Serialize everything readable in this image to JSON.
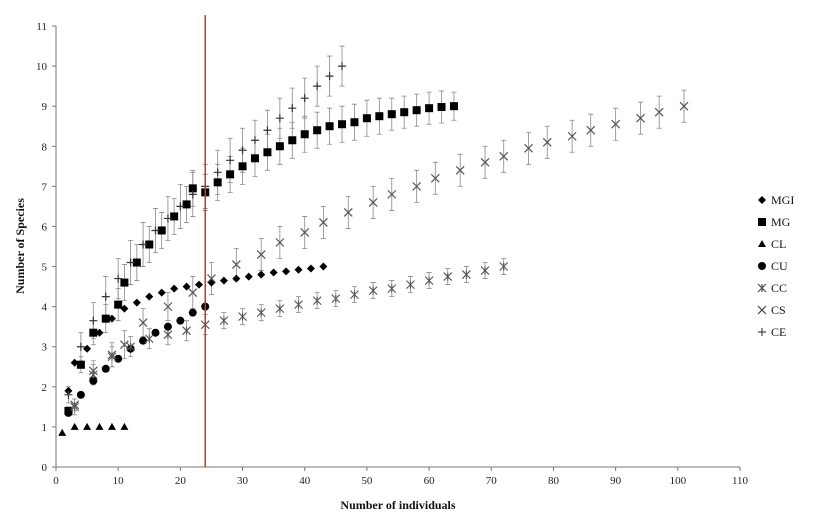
{
  "chart_data": {
    "type": "scatter",
    "xlabel": "Number of individuals",
    "ylabel": "Number of Species",
    "xlim": [
      0,
      110
    ],
    "ylim": [
      0,
      11
    ],
    "xticks": [
      "0",
      "10",
      "20",
      "30",
      "40",
      "50",
      "60",
      "70",
      "80",
      "90",
      "100",
      "110"
    ],
    "yticks": [
      "0",
      "1",
      "2",
      "3",
      "4",
      "5",
      "6",
      "7",
      "8",
      "9",
      "10",
      "11"
    ],
    "grid": false,
    "legend_position": "right",
    "reference_line": {
      "x": 24,
      "color": "#c0392b"
    },
    "series": [
      {
        "name": "MGI",
        "marker": "diamond",
        "color": "#000000",
        "x": [
          2,
          3,
          5,
          7,
          9,
          11,
          13,
          15,
          17,
          19,
          21,
          23,
          25,
          27,
          29,
          31,
          33,
          35,
          37,
          39,
          41,
          43
        ],
        "y": [
          1.9,
          2.6,
          2.95,
          3.35,
          3.7,
          3.95,
          4.1,
          4.25,
          4.35,
          4.45,
          4.5,
          4.55,
          4.6,
          4.65,
          4.7,
          4.75,
          4.8,
          4.85,
          4.88,
          4.92,
          4.95,
          5.0
        ],
        "err": []
      },
      {
        "name": "MG",
        "marker": "square",
        "color": "#000000",
        "x": [
          2,
          4,
          6,
          8,
          10,
          11,
          13,
          15,
          17,
          19,
          21,
          22,
          24,
          26,
          28,
          30,
          32,
          34,
          36,
          38,
          40,
          42,
          44,
          46,
          48,
          50,
          52,
          54,
          56,
          58,
          60,
          62,
          64
        ],
        "y": [
          1.4,
          2.55,
          3.35,
          3.7,
          4.05,
          4.6,
          5.1,
          5.55,
          5.9,
          6.25,
          6.55,
          6.95,
          6.85,
          7.1,
          7.3,
          7.5,
          7.7,
          7.85,
          8.0,
          8.15,
          8.3,
          8.4,
          8.5,
          8.55,
          8.6,
          8.7,
          8.75,
          8.8,
          8.85,
          8.9,
          8.95,
          8.98,
          9.0
        ],
        "err": [
          0.1,
          0.2,
          0.3,
          0.35,
          0.4,
          0.45,
          0.45,
          0.45,
          0.45,
          0.45,
          0.45,
          0.45,
          0.45,
          0.45,
          0.45,
          0.45,
          0.45,
          0.45,
          0.45,
          0.45,
          0.45,
          0.45,
          0.45,
          0.45,
          0.45,
          0.45,
          0.45,
          0.4,
          0.4,
          0.4,
          0.4,
          0.4,
          0.35
        ]
      },
      {
        "name": "CL",
        "marker": "triangle",
        "color": "#000000",
        "x": [
          1,
          3,
          5,
          7,
          9,
          11
        ],
        "y": [
          0.85,
          1.0,
          1.0,
          1.0,
          1.0,
          1.0
        ],
        "err": []
      },
      {
        "name": "CU",
        "marker": "circle",
        "color": "#000000",
        "x": [
          2,
          4,
          6,
          8,
          10,
          12,
          14,
          16,
          18,
          20,
          22,
          24
        ],
        "y": [
          1.35,
          1.8,
          2.15,
          2.45,
          2.7,
          2.95,
          3.15,
          3.35,
          3.5,
          3.65,
          3.85,
          4.0
        ],
        "err": []
      },
      {
        "name": "CC",
        "marker": "asterisk",
        "color": "#555555",
        "x": [
          3,
          6,
          9,
          12,
          15,
          18,
          21,
          24,
          27,
          30,
          33,
          36,
          39,
          42,
          45,
          48,
          51,
          54,
          57,
          60,
          63,
          66,
          69,
          72
        ],
        "y": [
          1.5,
          2.3,
          2.75,
          3.0,
          3.2,
          3.3,
          3.4,
          3.55,
          3.65,
          3.75,
          3.85,
          3.95,
          4.05,
          4.15,
          4.2,
          4.3,
          4.4,
          4.45,
          4.55,
          4.65,
          4.75,
          4.8,
          4.9,
          5.0
        ],
        "err": [
          0.2,
          0.25,
          0.25,
          0.25,
          0.25,
          0.25,
          0.25,
          0.25,
          0.2,
          0.2,
          0.2,
          0.2,
          0.2,
          0.2,
          0.2,
          0.2,
          0.2,
          0.2,
          0.2,
          0.2,
          0.2,
          0.2,
          0.2,
          0.2
        ]
      },
      {
        "name": "CS",
        "marker": "cross",
        "color": "#555555",
        "x": [
          3,
          6,
          9,
          11,
          14,
          18,
          22,
          25,
          29,
          33,
          36,
          40,
          43,
          47,
          51,
          54,
          58,
          61,
          65,
          69,
          72,
          76,
          79,
          83,
          86,
          90,
          94,
          97,
          101
        ],
        "y": [
          1.55,
          2.4,
          2.8,
          3.05,
          3.6,
          4.0,
          4.35,
          4.7,
          5.05,
          5.3,
          5.6,
          5.85,
          6.1,
          6.35,
          6.6,
          6.8,
          7.0,
          7.2,
          7.4,
          7.6,
          7.75,
          7.95,
          8.1,
          8.25,
          8.4,
          8.55,
          8.7,
          8.85,
          9.0
        ],
        "err": [
          0.15,
          0.25,
          0.3,
          0.35,
          0.35,
          0.35,
          0.4,
          0.4,
          0.4,
          0.4,
          0.4,
          0.4,
          0.4,
          0.4,
          0.4,
          0.4,
          0.4,
          0.4,
          0.4,
          0.4,
          0.4,
          0.4,
          0.4,
          0.4,
          0.4,
          0.4,
          0.4,
          0.4,
          0.4
        ]
      },
      {
        "name": "CE",
        "marker": "plus",
        "color": "#333333",
        "x": [
          2,
          4,
          6,
          8,
          10,
          12,
          14,
          16,
          18,
          20,
          22,
          24,
          26,
          28,
          30,
          32,
          34,
          36,
          38,
          40,
          42,
          44,
          46
        ],
        "y": [
          1.8,
          3.0,
          3.65,
          4.25,
          4.7,
          5.1,
          5.55,
          5.9,
          6.2,
          6.5,
          6.8,
          7.0,
          7.35,
          7.65,
          7.9,
          8.15,
          8.4,
          8.7,
          8.95,
          9.2,
          9.5,
          9.75,
          10.0
        ],
        "err": [
          0.2,
          0.35,
          0.45,
          0.5,
          0.5,
          0.55,
          0.55,
          0.55,
          0.55,
          0.55,
          0.55,
          0.55,
          0.55,
          0.55,
          0.55,
          0.5,
          0.5,
          0.5,
          0.5,
          0.5,
          0.5,
          0.5,
          0.5
        ]
      }
    ]
  }
}
